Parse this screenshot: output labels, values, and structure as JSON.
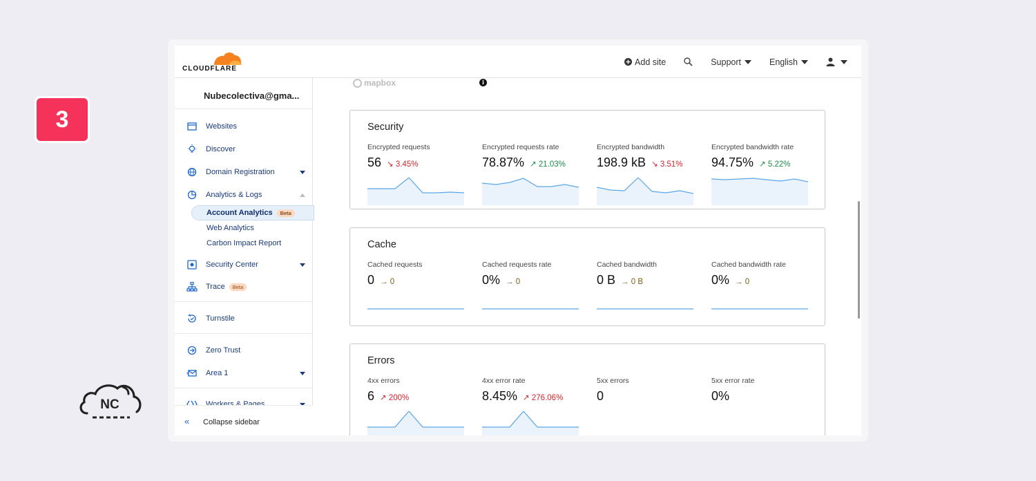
{
  "step_badge": "3",
  "brand": {
    "logo_text": "CLOUDFLARE",
    "accent": "#f6821f"
  },
  "topbar": {
    "add_site": "Add site",
    "support": "Support",
    "language": "English"
  },
  "sidebar": {
    "account": "Nubecolectiva@gma...",
    "items": [
      {
        "label": "Websites"
      },
      {
        "label": "Discover"
      },
      {
        "label": "Domain Registration"
      },
      {
        "label": "Analytics & Logs"
      },
      {
        "label": "Account Analytics",
        "badge": "Beta"
      },
      {
        "label": "Web Analytics"
      },
      {
        "label": "Carbon Impact Report"
      },
      {
        "label": "Security Center"
      },
      {
        "label": "Trace",
        "badge": "Beta"
      },
      {
        "label": "Turnstile"
      },
      {
        "label": "Zero Trust"
      },
      {
        "label": "Area 1"
      },
      {
        "label": "Workers & Pages"
      }
    ],
    "collapse": "Collapse sidebar"
  },
  "main": {
    "mapbox": "mapbox",
    "sections": [
      {
        "title": "Security",
        "metrics": [
          {
            "label": "Encrypted requests",
            "value": "56",
            "change": "3.45%",
            "dir": "down"
          },
          {
            "label": "Encrypted requests rate",
            "value": "78.87%",
            "change": "21.03%",
            "dir": "up"
          },
          {
            "label": "Encrypted bandwidth",
            "value": "198.9 kB",
            "change": "3.51%",
            "dir": "down"
          },
          {
            "label": "Encrypted bandwidth rate",
            "value": "94.75%",
            "change": "5.22%",
            "dir": "up"
          }
        ]
      },
      {
        "title": "Cache",
        "metrics": [
          {
            "label": "Cached requests",
            "value": "0",
            "change": "0",
            "dir": "flat"
          },
          {
            "label": "Cached requests rate",
            "value": "0%",
            "change": "0",
            "dir": "flat"
          },
          {
            "label": "Cached bandwidth",
            "value": "0 B",
            "change": "0 B",
            "dir": "flat"
          },
          {
            "label": "Cached bandwidth rate",
            "value": "0%",
            "change": "0",
            "dir": "flat"
          }
        ]
      },
      {
        "title": "Errors",
        "metrics": [
          {
            "label": "4xx errors",
            "value": "6",
            "change": "200%",
            "dir": "up-bad"
          },
          {
            "label": "4xx error rate",
            "value": "8.45%",
            "change": "276.06%",
            "dir": "up-bad"
          },
          {
            "label": "5xx errors",
            "value": "0",
            "change": "",
            "dir": "none"
          },
          {
            "label": "5xx error rate",
            "value": "0%",
            "change": "",
            "dir": "none"
          }
        ]
      }
    ]
  },
  "colors": {
    "spark_line": "#5aa6e6",
    "spark_fill": "#e3f0fb",
    "badge": "#f5335a"
  }
}
